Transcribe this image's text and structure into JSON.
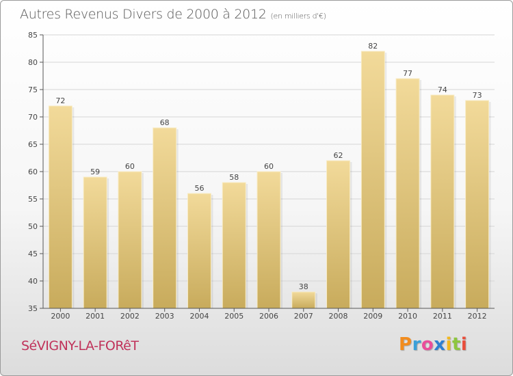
{
  "header": {
    "title": "Autres Revenus Divers de 2000 à 2012",
    "unit": "(en milliers d'€)"
  },
  "footer": {
    "commune": "SéVIGNY-LA-FORêT",
    "logo_letters": [
      "P",
      "r",
      "o",
      "x",
      "i",
      "t",
      "i"
    ],
    "logo_colors": [
      "#f28c1e",
      "#3aa0d8",
      "#e94e9b",
      "#2d7fd0",
      "#f2b81e",
      "#8dc63f",
      "#e94e3b"
    ]
  },
  "colors": {
    "bar_top": "#f2da9a",
    "bar_bottom": "#c8ab5c",
    "grid": "#d5d5d5",
    "axis": "#555555"
  },
  "chart_data": {
    "type": "bar",
    "title": "Autres Revenus Divers de 2000 à 2012",
    "xlabel": "",
    "ylabel": "",
    "categories": [
      "2000",
      "2001",
      "2002",
      "2003",
      "2004",
      "2005",
      "2006",
      "2007",
      "2008",
      "2009",
      "2010",
      "2011",
      "2012"
    ],
    "values": [
      72,
      59,
      60,
      68,
      56,
      58,
      60,
      38,
      62,
      82,
      77,
      74,
      73
    ],
    "ylim": [
      35,
      85
    ],
    "yticks": [
      35,
      40,
      45,
      50,
      55,
      60,
      65,
      70,
      75,
      80,
      85
    ],
    "grid": true,
    "data_labels": true
  }
}
